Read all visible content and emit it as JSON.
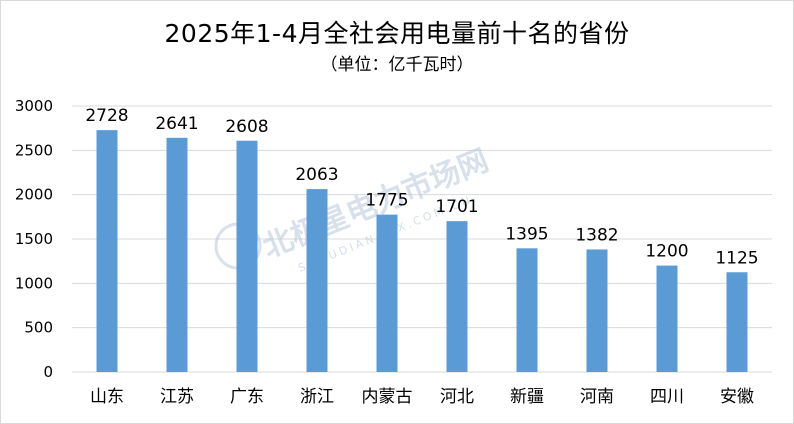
{
  "title": "2025年1-4月全社会用电量前十名的省份",
  "subtitle": "（单位：亿千瓦时）",
  "watermark": {
    "text": "北极星电力市场网",
    "sub": "SHOUDIAN.BJX.COM.CN"
  },
  "colors": {
    "bar": "#5b9bd5",
    "grid": "#d9d9d9"
  },
  "chart_data": {
    "type": "bar",
    "title": "2025年1-4月全社会用电量前十名的省份",
    "subtitle": "（单位：亿千瓦时）",
    "categories": [
      "山东",
      "江苏",
      "广东",
      "浙江",
      "内蒙古",
      "河北",
      "新疆",
      "河南",
      "四川",
      "安徽"
    ],
    "values": [
      2728,
      2641,
      2608,
      2063,
      1775,
      1701,
      1395,
      1382,
      1200,
      1125
    ],
    "yticks": [
      0,
      500,
      1000,
      1500,
      2000,
      2500,
      3000
    ],
    "ylim": [
      0,
      3000
    ],
    "xlabel": "",
    "ylabel": "",
    "grid": true,
    "data_labels": true,
    "legend": "none"
  }
}
